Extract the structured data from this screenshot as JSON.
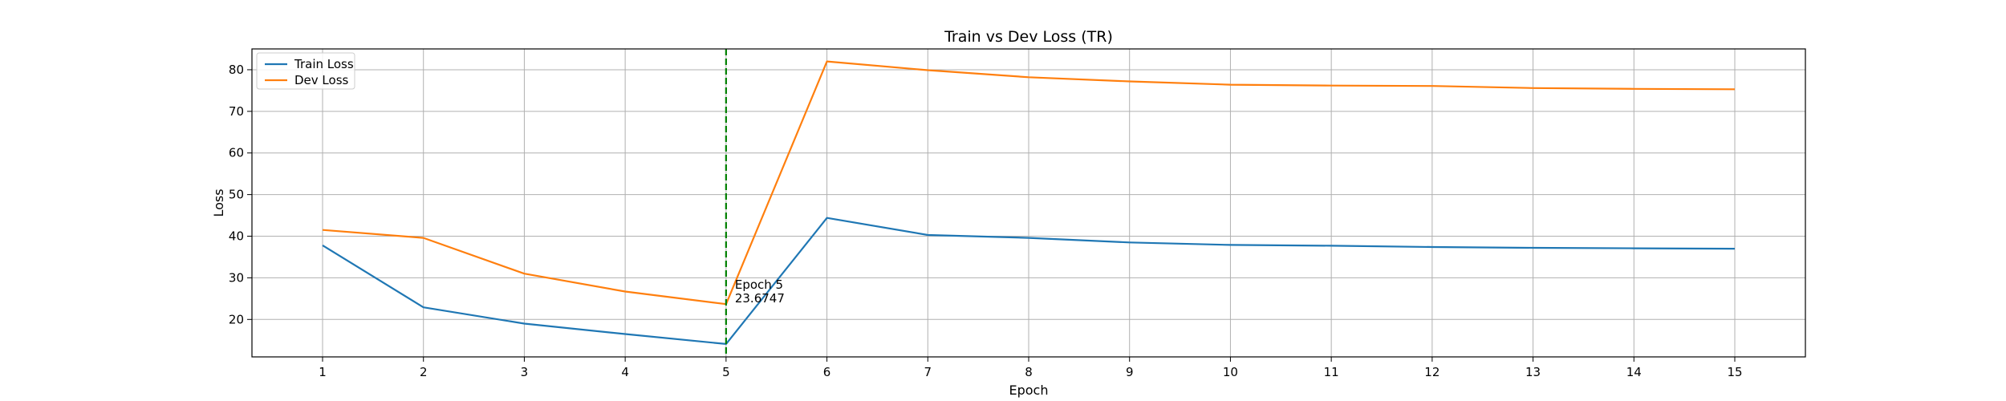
{
  "chart_data": {
    "type": "line",
    "title": "Train vs Dev Loss (TR)",
    "xlabel": "Epoch",
    "ylabel": "Loss",
    "x": [
      1,
      2,
      3,
      4,
      5,
      6,
      7,
      8,
      9,
      10,
      11,
      12,
      13,
      14,
      15
    ],
    "xticks": [
      1,
      2,
      3,
      4,
      5,
      6,
      7,
      8,
      9,
      10,
      11,
      12,
      13,
      14,
      15
    ],
    "xlim": [
      0.3,
      15.7
    ],
    "yticks": [
      20,
      30,
      40,
      50,
      60,
      70,
      80
    ],
    "ylim": [
      11,
      85
    ],
    "grid": true,
    "legend_position": "upper-left",
    "series": [
      {
        "name": "Train Loss",
        "color": "#1f77b4",
        "values": [
          37.8,
          22.9,
          19.0,
          16.5,
          14.1,
          44.4,
          40.3,
          39.6,
          38.5,
          37.9,
          37.7,
          37.4,
          37.2,
          37.1,
          37.0
        ]
      },
      {
        "name": "Dev Loss",
        "color": "#ff7f0e",
        "values": [
          41.5,
          39.6,
          31.0,
          26.7,
          23.6747,
          82.0,
          79.9,
          78.2,
          77.2,
          76.4,
          76.2,
          76.1,
          75.6,
          75.4,
          75.3
        ]
      }
    ],
    "vline": {
      "x": 5,
      "color": "#008000",
      "style": "dashed"
    },
    "annotation": {
      "x": 5,
      "y": 23.6747,
      "line1": "Epoch 5",
      "line2": "23.6747"
    }
  }
}
